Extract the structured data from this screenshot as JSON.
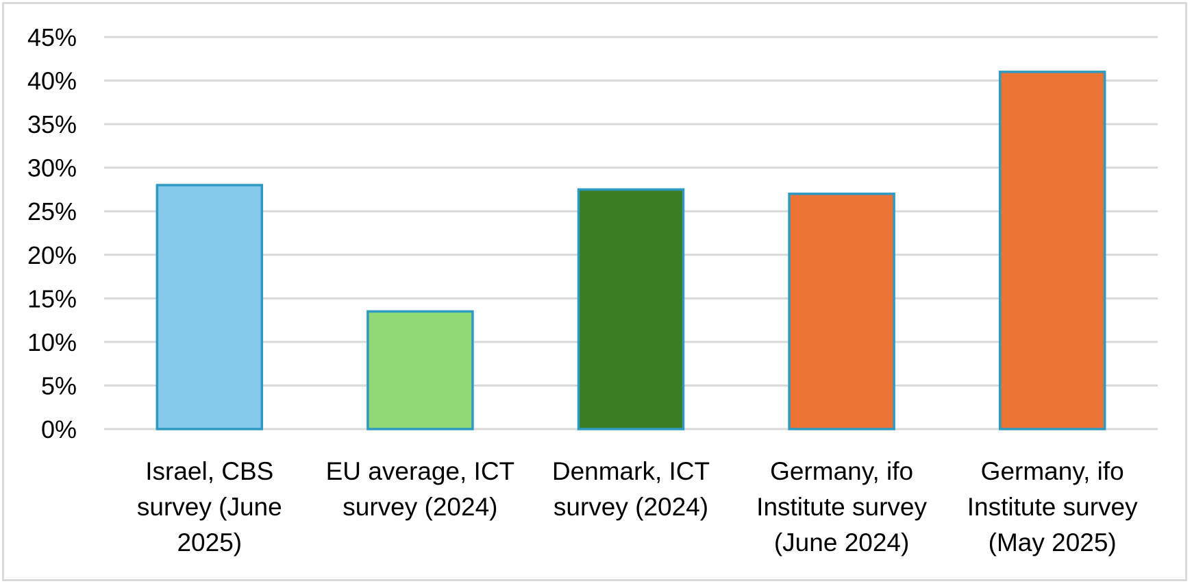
{
  "chart_data": {
    "type": "bar",
    "title": "",
    "xlabel": "",
    "ylabel": "",
    "ylim": [
      0,
      45
    ],
    "yticks": [
      "0%",
      "5%",
      "10%",
      "15%",
      "20%",
      "25%",
      "30%",
      "35%",
      "40%",
      "45%"
    ],
    "grid": true,
    "legend": "none",
    "categories": [
      [
        "Israel, CBS",
        "survey (June",
        "2025)"
      ],
      [
        "EU average, ICT",
        "survey (2024)"
      ],
      [
        "Denmark, ICT",
        "survey (2024)"
      ],
      [
        "Germany, ifo",
        "Institute survey",
        "(June 2024)"
      ],
      [
        "Germany, ifo",
        "Institute survey",
        "(May 2025)"
      ]
    ],
    "values": [
      28,
      13.5,
      27.5,
      27,
      41
    ],
    "colors": [
      "#84cbeb",
      "#90d975",
      "#3b7d23",
      "#eb7434",
      "#eb7434"
    ],
    "bar_border_color": "#2e9ac4",
    "grid_color": "#d9d9d9"
  }
}
